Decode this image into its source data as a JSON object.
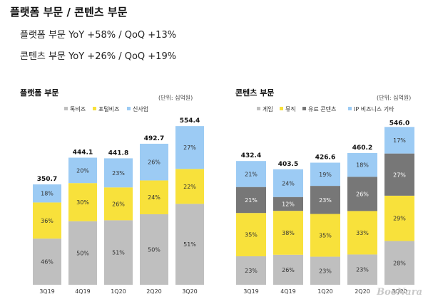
{
  "header": {
    "title": "플랫폼 부문  /  콘텐츠 부문",
    "line1": "플랫폼 부문  YoY +58% / QoQ +13%",
    "line2": "콘텐츠 부문  YoY +26% / QoQ +19%"
  },
  "watermark": "BooNara",
  "colors": {
    "gray": "#bfbfbf",
    "yellow": "#f8e13b",
    "blue": "#9ccbf4",
    "darkgray": "#777777"
  },
  "chart_data": [
    {
      "type": "bar",
      "stacked": true,
      "title": "플랫폼 부문",
      "unit": "(단위: 십억원)",
      "categories": [
        "3Q19",
        "4Q19",
        "1Q20",
        "2Q20",
        "3Q20"
      ],
      "totals": [
        350.7,
        444.1,
        441.8,
        492.7,
        554.4
      ],
      "total_labels": [
        "350.7",
        "444.1",
        "441.8",
        "492.7",
        "554.4"
      ],
      "legend_position": "top",
      "series": [
        {
          "name": "톡비즈",
          "color": "#bfbfbf",
          "shares": [
            46,
            50,
            51,
            50,
            51
          ],
          "labels": [
            "46%",
            "50%",
            "51%",
            "50%",
            "51%"
          ]
        },
        {
          "name": "포털비즈",
          "color": "#f8e13b",
          "shares": [
            36,
            30,
            26,
            24,
            22
          ],
          "labels": [
            "36%",
            "30%",
            "26%",
            "24%",
            "22%"
          ]
        },
        {
          "name": "신사업",
          "color": "#9ccbf4",
          "shares": [
            18,
            20,
            23,
            26,
            27
          ],
          "labels": [
            "18%",
            "20%",
            "23%",
            "26%",
            "27%"
          ]
        }
      ]
    },
    {
      "type": "bar",
      "stacked": true,
      "title": "콘텐츠 부문",
      "unit": "(단위: 십억원)",
      "categories": [
        "3Q19",
        "4Q19",
        "1Q20",
        "2Q20",
        "3Q20"
      ],
      "totals": [
        432.4,
        403.5,
        426.6,
        460.2,
        546.0
      ],
      "total_labels": [
        "432.4",
        "403.5",
        "426.6",
        "460.2",
        "546.0"
      ],
      "legend_position": "top",
      "series": [
        {
          "name": "게임",
          "color": "#bfbfbf",
          "shares": [
            23,
            26,
            23,
            23,
            28
          ],
          "labels": [
            "23%",
            "26%",
            "23%",
            "23%",
            "28%"
          ]
        },
        {
          "name": "뮤직",
          "color": "#f8e13b",
          "shares": [
            35,
            38,
            35,
            33,
            29
          ],
          "labels": [
            "35%",
            "38%",
            "35%",
            "33%",
            "29%"
          ]
        },
        {
          "name": "유료 콘텐츠",
          "color": "#777777",
          "shares": [
            21,
            12,
            23,
            26,
            27
          ],
          "labels": [
            "21%",
            "12%",
            "23%",
            "26%",
            "27%"
          ]
        },
        {
          "name": "IP 비즈니스 기타",
          "color": "#9ccbf4",
          "shares": [
            21,
            24,
            19,
            18,
            17
          ],
          "labels": [
            "21%",
            "24%",
            "19%",
            "18%",
            "17%"
          ]
        }
      ]
    }
  ]
}
